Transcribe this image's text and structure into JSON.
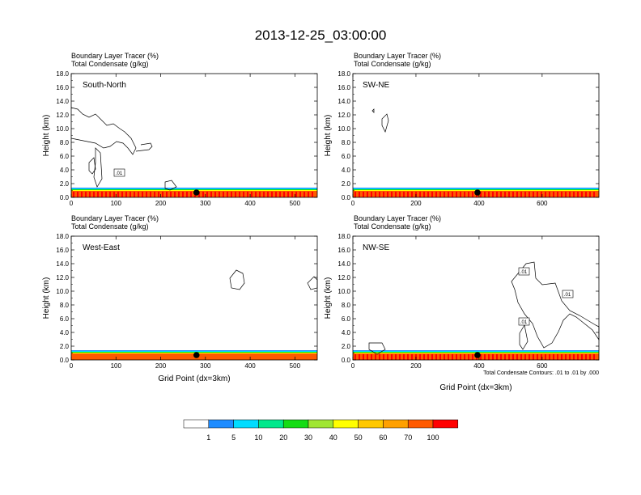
{
  "title": "2013-12-25_03:00:00",
  "fill_label": "Boundary Layer Tracer   (%)",
  "contour_label": "Total Condensate   (g/kg)",
  "ylabel": "Height (km)",
  "xlabel": "Grid Point (dx=3km)",
  "contour_note": "Total Condensate Contours: .01 to .01 by .000",
  "contour_tag": ".01",
  "chart_data": [
    {
      "type": "heatmap",
      "name": "South-North",
      "x_ticks": [
        0,
        100,
        200,
        300,
        400,
        500
      ],
      "xlim": [
        0,
        550
      ],
      "y_ticks": [
        "0.0",
        "2.0",
        "4.0",
        "6.0",
        "8.0",
        "10.0",
        "12.0",
        "14.0",
        "16.0",
        "18.0"
      ],
      "ylim": [
        0,
        18
      ],
      "marker_x": [
        280
      ],
      "show_xlabel": false
    },
    {
      "type": "heatmap",
      "name": "SW-NE",
      "x_ticks": [
        0,
        200,
        400,
        600
      ],
      "xlim": [
        0,
        780
      ],
      "y_ticks": [
        "0.0",
        "2.0",
        "4.0",
        "6.0",
        "8.0",
        "10.0",
        "12.0",
        "14.0",
        "16.0",
        "18.0"
      ],
      "ylim": [
        0,
        18
      ],
      "marker_x": [
        395
      ],
      "show_xlabel": false
    },
    {
      "type": "heatmap",
      "name": "West-East",
      "x_ticks": [
        0,
        100,
        200,
        300,
        400,
        500
      ],
      "xlim": [
        0,
        550
      ],
      "y_ticks": [
        "0.0",
        "2.0",
        "4.0",
        "6.0",
        "8.0",
        "10.0",
        "12.0",
        "14.0",
        "16.0",
        "18.0"
      ],
      "ylim": [
        0,
        18
      ],
      "marker_x": [
        280
      ],
      "show_xlabel": true
    },
    {
      "type": "heatmap",
      "name": "NW-SE",
      "x_ticks": [
        0,
        200,
        400,
        600
      ],
      "xlim": [
        0,
        780
      ],
      "y_ticks": [
        "0.0",
        "2.0",
        "4.0",
        "6.0",
        "8.0",
        "10.0",
        "12.0",
        "14.0",
        "16.0",
        "18.0"
      ],
      "ylim": [
        0,
        18
      ],
      "marker_x": [
        395
      ],
      "show_xlabel": true
    }
  ],
  "colorbar": {
    "colors": [
      "#ffffff",
      "#1e8cff",
      "#00dcff",
      "#00e88c",
      "#14dc14",
      "#a0e632",
      "#ffff00",
      "#ffc800",
      "#ffa000",
      "#ff5a00",
      "#ff0000"
    ],
    "labels": [
      "1",
      "5",
      "10",
      "20",
      "30",
      "40",
      "50",
      "60",
      "70",
      "100"
    ]
  }
}
